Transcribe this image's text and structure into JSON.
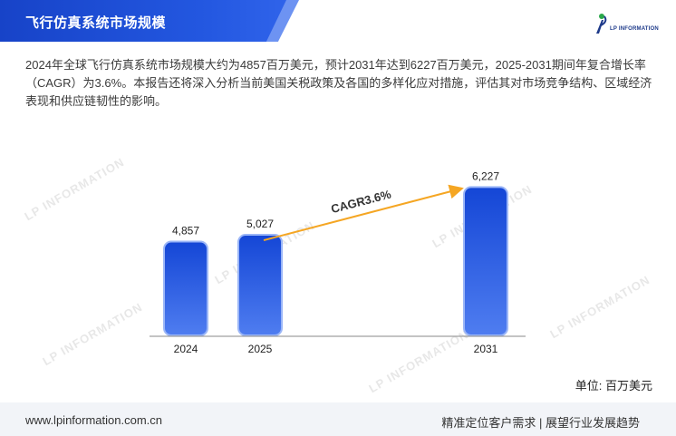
{
  "header": {
    "title": "飞行仿真系统市场规模",
    "logo_text": "LP INFORMATION"
  },
  "description": "2024年全球飞行仿真系统市场规模大约为4857百万美元，预计2031年达到6227百万美元，2025-2031期间年复合增长率（CAGR）为3.6%。本报告还将深入分析当前美国关税政策及各国的多样化应对措施，评估其对市场竞争结构、区域经济表现和供应链韧性的影响。",
  "watermark_text": "LP INFORMATION",
  "chart_data": {
    "type": "bar",
    "categories": [
      "2024",
      "2025",
      "2031"
    ],
    "values": [
      4857,
      5027,
      6227
    ],
    "data_labels": [
      "4,857",
      "5,027",
      "6,227"
    ],
    "annotation": "CAGR3.6%",
    "unit": "单位: 百万美元",
    "ylim": [
      0,
      6600
    ],
    "grid": false,
    "colors": {
      "bar_top": "#1446d6",
      "bar_bottom": "#4f7df0",
      "arrow": "#f5a623"
    }
  },
  "footer": {
    "url": "www.lpinformation.com.cn",
    "slogan": "精准定位客户需求 | 展望行业发展趋势"
  }
}
